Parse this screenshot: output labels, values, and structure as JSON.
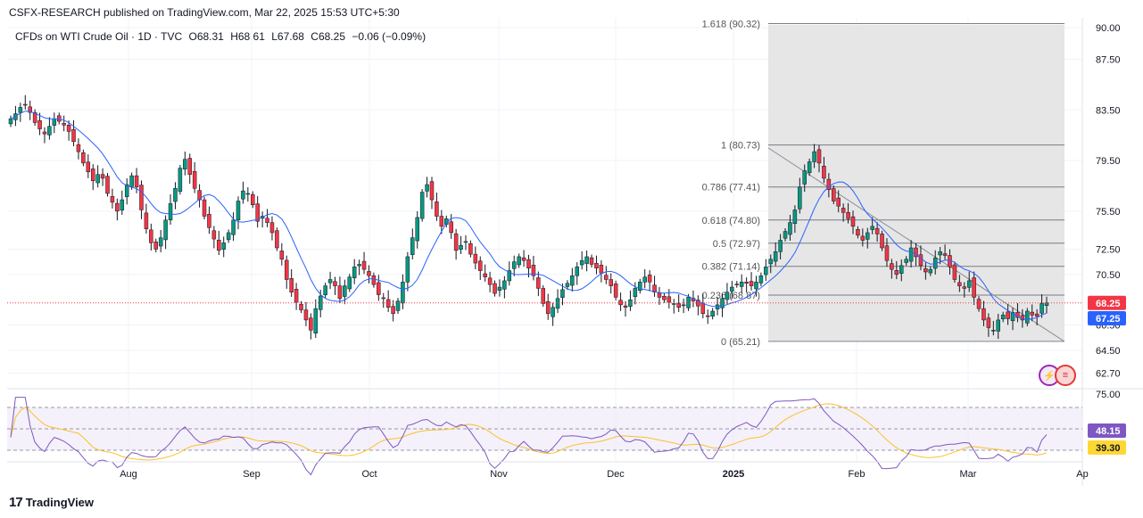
{
  "header": {
    "published": "CSFX-RESEARCH published on TradingView.com, Mar 22, 2025 15:53 UTC+5:30"
  },
  "legend": {
    "instrument": "CFDs on WTI Crude Oil · 1D · TVC",
    "open": "O68.31",
    "high": "H68.61",
    "low": "L67.68",
    "close": "C68.25",
    "change": "−0.06 (−0.09%)"
  },
  "brand": {
    "logo": "17",
    "name": "TradingView"
  },
  "icons": [
    "lightning-icon",
    "us-flag-icon"
  ],
  "colors": {
    "up": "#089981",
    "down": "#f23645",
    "ma": "#2962ff",
    "rsi": "#7e57c2",
    "rsi_ma": "#fbc02d",
    "fib_zone": "#e8e8e8",
    "fib_line": "#787b86"
  },
  "chart_data": [
    {
      "type": "candlestick",
      "title": "",
      "price_axis": {
        "ticks": [
          "90.00",
          "87.50",
          "83.50",
          "79.50",
          "75.50",
          "72.50",
          "70.50",
          "66.50",
          "64.50",
          "62.70"
        ],
        "ylim": [
          62.0,
          90.5
        ]
      },
      "time_axis": {
        "labels": [
          "Aug",
          "Sep",
          "Oct",
          "Nov",
          "Dec",
          "2025",
          "Feb",
          "Mar",
          "Ap"
        ]
      },
      "last_price": {
        "label": "68.25",
        "value": 68.25,
        "color": "#f23645"
      },
      "ma_price": {
        "label": "67.25",
        "value": 67.25,
        "color": "#2962ff"
      },
      "fibonacci": {
        "levels": [
          {
            "label": "1.618 (90.32)",
            "value": 90.32
          },
          {
            "label": "1 (80.73)",
            "value": 80.73
          },
          {
            "label": "0.786 (77.41)",
            "value": 77.41
          },
          {
            "label": "0.618 (74.80)",
            "value": 74.8
          },
          {
            "label": "0.5 (72.97)",
            "value": 72.97
          },
          {
            "label": "0.382 (71.14)",
            "value": 71.14
          },
          {
            "label": "0.236 (68.87)",
            "value": 68.87
          },
          {
            "label": "0 (65.21)",
            "value": 65.21
          }
        ]
      },
      "trendline": {
        "from": 80.5,
        "to": 65.2
      },
      "close_series": [
        82.8,
        83.2,
        83.7,
        83.9,
        83.3,
        82.5,
        82.0,
        81.6,
        82.2,
        82.8,
        82.6,
        82.3,
        81.8,
        81.0,
        80.2,
        79.3,
        78.6,
        77.9,
        78.4,
        78.1,
        76.9,
        76.2,
        75.5,
        76.4,
        77.6,
        78.3,
        77.4,
        75.6,
        74.1,
        73.0,
        72.5,
        73.4,
        74.8,
        76.1,
        77.3,
        78.9,
        79.6,
        78.4,
        77.3,
        76.4,
        75.1,
        74.2,
        73.3,
        72.4,
        73.0,
        73.8,
        74.8,
        76.3,
        77.1,
        76.9,
        76.0,
        74.7,
        75.1,
        74.6,
        73.8,
        72.6,
        71.7,
        70.1,
        69.1,
        68.3,
        67.7,
        66.9,
        66.1,
        67.8,
        68.8,
        69.6,
        70.1,
        69.6,
        68.6,
        69.6,
        70.3,
        71.1,
        71.3,
        70.9,
        70.4,
        69.7,
        68.9,
        68.6,
        67.9,
        67.4,
        68.4,
        69.9,
        71.9,
        73.4,
        75.0,
        77.0,
        77.6,
        76.4,
        75.1,
        74.3,
        74.9,
        73.8,
        72.4,
        72.8,
        73.1,
        72.1,
        71.4,
        70.8,
        70.3,
        69.7,
        69.0,
        69.5,
        70.0,
        70.8,
        71.5,
        71.9,
        71.6,
        71.0,
        70.4,
        69.4,
        68.2,
        67.4,
        67.9,
        68.6,
        69.3,
        69.8,
        70.4,
        71.1,
        71.6,
        71.9,
        71.3,
        71.0,
        70.6,
        70.1,
        69.6,
        68.7,
        68.1,
        67.9,
        68.5,
        69.4,
        69.9,
        70.3,
        69.9,
        69.1,
        68.7,
        68.5,
        68.3,
        68.2,
        67.9,
        68.1,
        68.7,
        68.4,
        68.0,
        67.4,
        67.2,
        67.6,
        68.1,
        68.6,
        69.1,
        69.5,
        69.7,
        69.9,
        69.8,
        69.6,
        69.9,
        70.4,
        71.1,
        71.7,
        72.3,
        73.2,
        73.9,
        74.6,
        75.6,
        77.4,
        78.7,
        79.4,
        80.2,
        79.3,
        78.1,
        77.2,
        76.3,
        75.9,
        75.4,
        74.9,
        74.3,
        73.6,
        73.2,
        73.8,
        74.3,
        73.7,
        72.6,
        71.6,
        70.9,
        70.5,
        71.2,
        71.7,
        72.6,
        71.9,
        71.2,
        70.7,
        70.9,
        71.8,
        72.3,
        72.0,
        71.1,
        70.1,
        69.6,
        69.4,
        70.0,
        68.7,
        67.8,
        66.9,
        66.3,
        66.1,
        66.9,
        67.3,
        67.0,
        67.5,
        67.1,
        66.9,
        67.6,
        67.3,
        67.2,
        68.2,
        68.25
      ],
      "rsi": {
        "ticks": [
          "75.00"
        ],
        "value_label": "48.15",
        "ma_label": "39.30",
        "levels": [
          70,
          50,
          30
        ]
      }
    }
  ]
}
